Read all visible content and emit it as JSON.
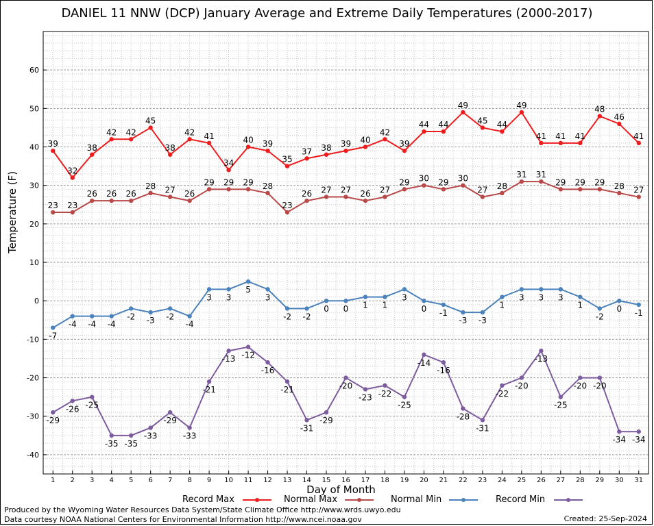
{
  "title": "DANIEL 11 NNW (DCP) January Average and Extreme Daily Temperatures (2000-2017)",
  "footer": {
    "line1": "Produced by the Wyoming Water Resources Data System/State Climate Office http://www.wrds.uwyo.edu",
    "line2": "Data courtesy NOAA National Centers for Environmental Information http://www.ncei.noaa.gov",
    "created": "Created:  25-Sep-2024"
  },
  "chart_data": {
    "type": "line",
    "title": "DANIEL 11 NNW (DCP) January Average and Extreme Daily Temperatures (2000-2017)",
    "xlabel": "Day of Month",
    "ylabel": "Temperature (F)",
    "x": [
      1,
      2,
      3,
      4,
      5,
      6,
      7,
      8,
      9,
      10,
      11,
      12,
      13,
      14,
      15,
      16,
      17,
      18,
      19,
      20,
      21,
      22,
      23,
      24,
      25,
      26,
      27,
      28,
      29,
      30,
      31
    ],
    "xlim": [
      0.5,
      31.5
    ],
    "ylim": [
      -45,
      70
    ],
    "yticks": [
      -40,
      -30,
      -20,
      -10,
      0,
      10,
      20,
      30,
      40,
      50,
      60
    ],
    "grid": true,
    "legend_position": "bottom",
    "series": [
      {
        "name": "Record Max",
        "color": "#ee1c1c",
        "label_position": "above",
        "values": [
          39,
          32,
          38,
          42,
          42,
          45,
          38,
          42,
          41,
          34,
          40,
          39,
          35,
          37,
          38,
          39,
          40,
          42,
          39,
          44,
          44,
          49,
          45,
          44,
          49,
          41,
          41,
          41,
          48,
          46,
          41
        ]
      },
      {
        "name": "Normal Max",
        "color": "#b94848",
        "label_position": "above",
        "values": [
          23,
          23,
          26,
          26,
          26,
          28,
          27,
          26,
          29,
          29,
          29,
          28,
          23,
          26,
          27,
          27,
          26,
          27,
          29,
          30,
          29,
          30,
          27,
          28,
          31,
          31,
          29,
          29,
          29,
          28,
          27
        ]
      },
      {
        "name": "Normal Min",
        "color": "#4b82bc",
        "label_position": "below",
        "values": [
          -7,
          -4,
          -4,
          -4,
          -2,
          -3,
          -2,
          -4,
          3,
          3,
          5,
          3,
          -2,
          -2,
          0,
          0,
          1,
          1,
          3,
          0,
          -1,
          -3,
          -3,
          1,
          3,
          3,
          3,
          1,
          -2,
          0,
          -1
        ]
      },
      {
        "name": "Record Min",
        "color": "#7c5c9e",
        "label_position": "below",
        "values": [
          -29,
          -26,
          -25,
          -35,
          -35,
          -33,
          -29,
          -33,
          -21,
          -13,
          -12,
          -16,
          -21,
          -31,
          -29,
          -20,
          -23,
          -22,
          -25,
          -14,
          -16,
          -28,
          -31,
          -22,
          -20,
          -13,
          -25,
          -20,
          -20,
          -34,
          -34
        ]
      }
    ]
  }
}
